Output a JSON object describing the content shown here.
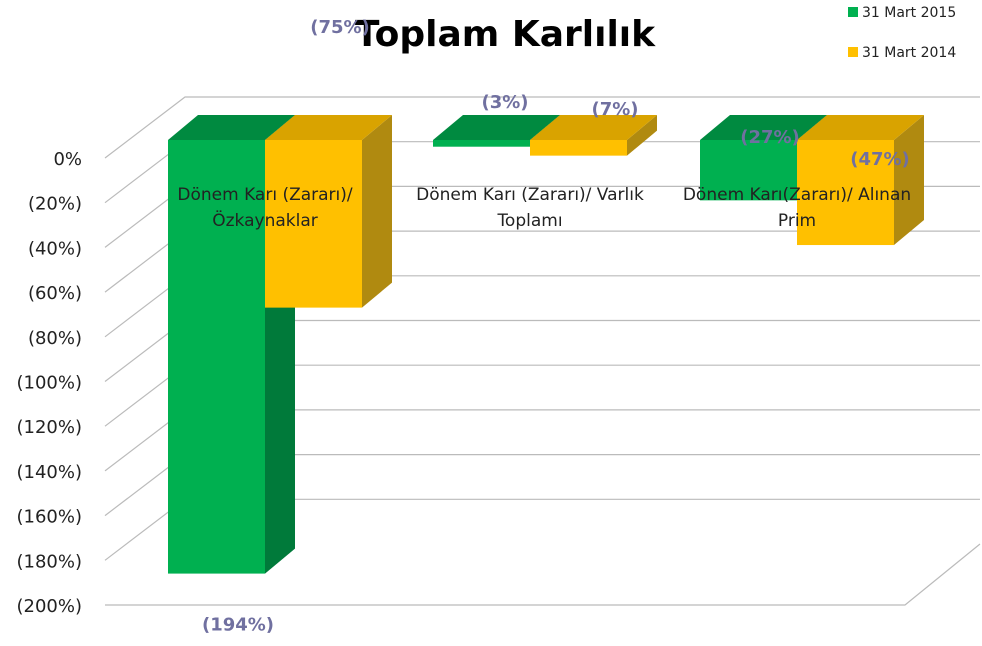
{
  "chart_data": {
    "type": "bar3d",
    "title": "Toplam Karlılık",
    "categories": [
      "Dönem Karı (Zararı)/ Özkaynaklar",
      "Dönem Karı (Zararı)/ Varlık Toplamı",
      "Dönem Karı(Zararı)/ Alınan Prim"
    ],
    "series": [
      {
        "name": "31 Mart 2015",
        "color": "#00b050",
        "values": [
          -194,
          -3,
          -27
        ],
        "value_labels": [
          "(194%)",
          "(3%)",
          "(27%)"
        ]
      },
      {
        "name": "31 Mart 2014",
        "color": "#ffc000",
        "values": [
          -75,
          -7,
          -47
        ],
        "value_labels": [
          "(75%)",
          "(7%)",
          "(47%)"
        ]
      }
    ],
    "ylim": [
      -200,
      0
    ],
    "yticks": [
      {
        "value": 0,
        "label": "0%"
      },
      {
        "value": -20,
        "label": "(20%)"
      },
      {
        "value": -40,
        "label": "(40%)"
      },
      {
        "value": -60,
        "label": "(60%)"
      },
      {
        "value": -80,
        "label": "(80%)"
      },
      {
        "value": -100,
        "label": "(100%)"
      },
      {
        "value": -120,
        "label": "(120%)"
      },
      {
        "value": -140,
        "label": "(140%)"
      },
      {
        "value": -160,
        "label": "(160%)"
      },
      {
        "value": -180,
        "label": "(180%)"
      },
      {
        "value": -200,
        "label": "(200%)"
      }
    ],
    "grid": true,
    "legend": "top-right"
  }
}
